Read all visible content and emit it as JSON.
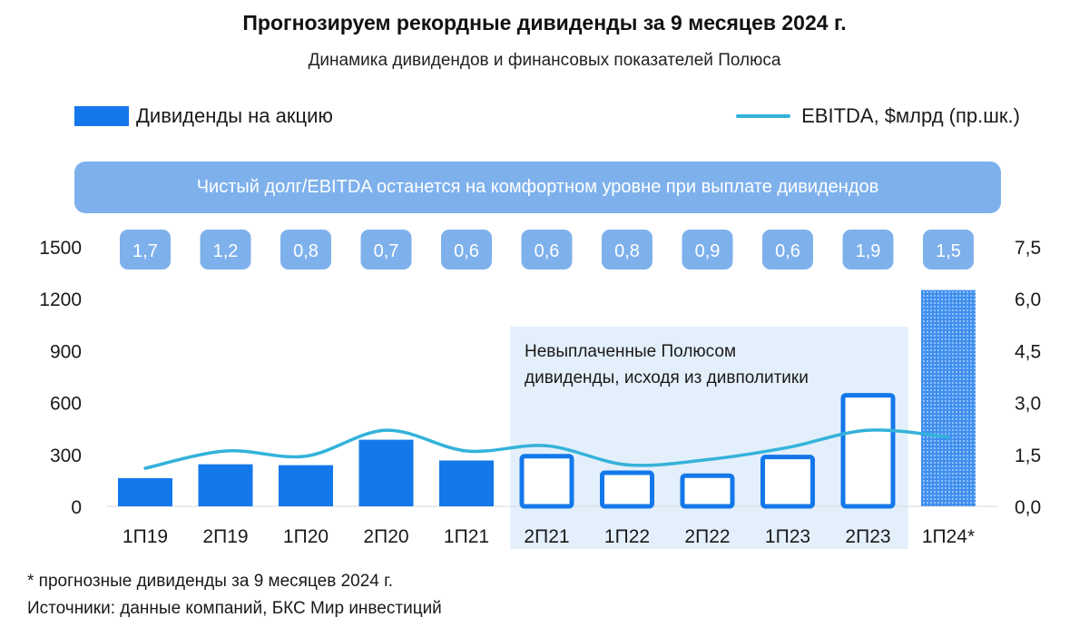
{
  "header": {
    "title": "Прогнозируем рекордные дивиденды за 9 месяцев 2024 г.",
    "subtitle": "Динамика дивидендов и финансовых показателей Полюса"
  },
  "legend": {
    "bars_label": "Дивиденды на акцию",
    "line_label": "EBITDA, $млрд (пр.шк.)"
  },
  "banner_text": "Чистый долг/EBITDA останется на комфортном уровне при выплате дивидендов",
  "annotation": {
    "line1": "Невыплаченные Полюсом",
    "line2": "дивиденды, исходя из дивполитики"
  },
  "footnote": "* прогнозные дивиденды за 9 месяцев 2024 г.",
  "sources": "Источники: данные компаний, БКС Мир инвестиций",
  "colors": {
    "bar": "#1478ea",
    "line": "#34b2da",
    "badge": "#7eb1ec",
    "shade": "#e3effb",
    "hatch_bg": "#3f8ff0"
  },
  "chart_data": {
    "type": "bar",
    "categories": [
      "1П19",
      "2П19",
      "1П20",
      "2П20",
      "1П21",
      "2П21",
      "1П22",
      "2П22",
      "1П23",
      "2П23",
      "1П24*"
    ],
    "series": [
      {
        "name": "Дивиденды на акцию",
        "axis": "left",
        "values": [
          163,
          243,
          238,
          385,
          265,
          303,
          207,
          190,
          298,
          655,
          1250
        ],
        "styles": [
          "solid",
          "solid",
          "solid",
          "solid",
          "solid",
          "outline",
          "outline",
          "outline",
          "outline",
          "outline",
          "hatched"
        ]
      },
      {
        "name": "EBITDA, $млрд (пр.шк.)",
        "axis": "right",
        "type": "line",
        "values": [
          1.1,
          1.6,
          1.45,
          2.2,
          1.6,
          1.75,
          1.2,
          1.35,
          1.7,
          2.2,
          2.0
        ]
      }
    ],
    "badges": [
      "1,7",
      "1,2",
      "0,8",
      "0,7",
      "0,6",
      "0,6",
      "0,8",
      "0,9",
      "0,6",
      "1,9",
      "1,5"
    ],
    "y_left": {
      "ylim": [
        0,
        1500
      ],
      "ticks": [
        "0",
        "300",
        "600",
        "900",
        "1200",
        "1500"
      ]
    },
    "y_right": {
      "ylim": [
        0,
        7.5
      ],
      "ticks": [
        "0,0",
        "1,5",
        "3,0",
        "4,5",
        "6,0",
        "7,5"
      ]
    },
    "shaded_range": [
      "2П21",
      "2П23"
    ],
    "grid": false
  }
}
